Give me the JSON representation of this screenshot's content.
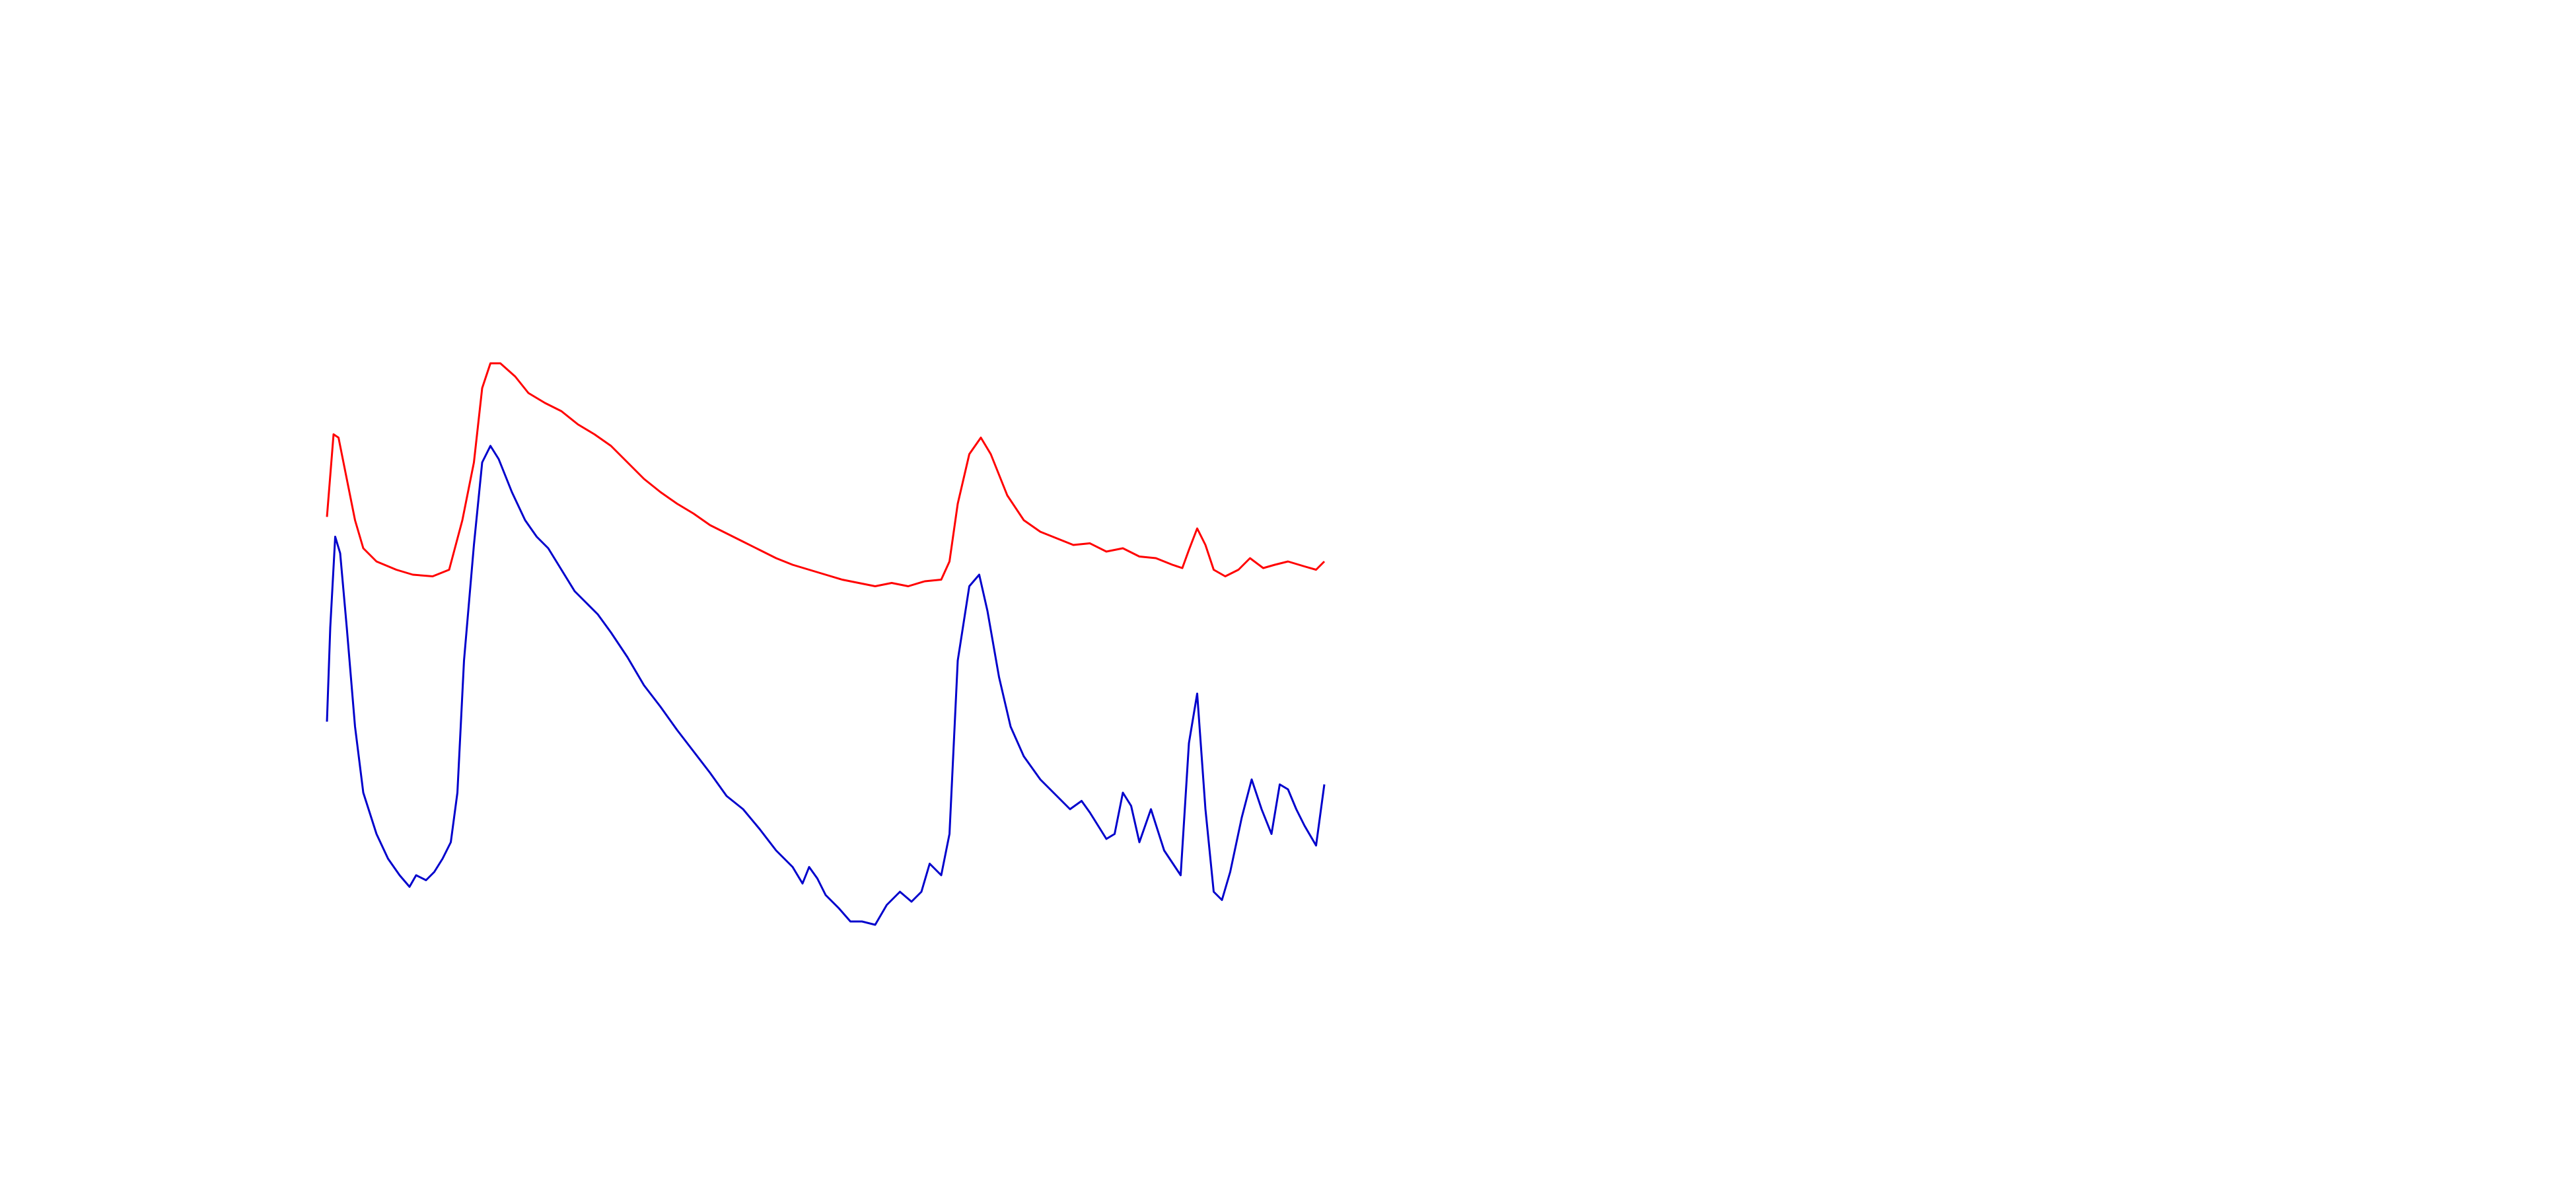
{
  "chart_data": {
    "type": "line",
    "xlim": [
      0,
      1560
    ],
    "ylim": [
      0,
      720
    ],
    "series": [
      {
        "color": "#ff0000",
        "x": [
          198,
          202,
          205,
          210,
          215,
          220,
          228,
          240,
          250,
          262,
          272,
          280,
          287,
          292,
          297,
          303,
          312,
          320,
          330,
          340,
          350,
          360,
          370,
          380,
          390,
          400,
          410,
          420,
          430,
          440,
          450,
          460,
          470,
          480,
          490,
          500,
          510,
          520,
          530,
          540,
          550,
          560,
          570,
          575,
          580,
          587,
          594,
          600,
          610,
          620,
          630,
          640,
          650,
          660,
          670,
          680,
          690,
          700,
          710,
          716,
          720,
          725,
          730,
          735,
          742,
          750,
          757,
          765,
          772,
          780,
          790,
          797,
          802
        ],
        "values": [
          407,
          457,
          455,
          430,
          405,
          388,
          380,
          375,
          372,
          371,
          375,
          405,
          440,
          485,
          500,
          500,
          492,
          482,
          476,
          471,
          463,
          457,
          450,
          440,
          430,
          422,
          415,
          409,
          402,
          397,
          392,
          387,
          382,
          378,
          375,
          372,
          369,
          367,
          365,
          367,
          365,
          368,
          369,
          380,
          415,
          445,
          455,
          445,
          420,
          405,
          398,
          394,
          390,
          391,
          386,
          388,
          383,
          382,
          378,
          376,
          387,
          400,
          390,
          375,
          371,
          375,
          382,
          376,
          378,
          380,
          377,
          375,
          380
        ]
      },
      {
        "color": "#0000cc",
        "x": [
          198,
          200,
          203,
          206,
          210,
          215,
          220,
          228,
          235,
          242,
          248,
          252,
          258,
          263,
          268,
          273,
          277,
          281,
          287,
          292,
          297,
          302,
          310,
          318,
          325,
          332,
          340,
          348,
          355,
          362,
          370,
          380,
          390,
          400,
          410,
          420,
          430,
          440,
          450,
          460,
          470,
          480,
          486,
          490,
          495,
          500,
          508,
          515,
          522,
          530,
          537,
          545,
          552,
          558,
          563,
          570,
          575,
          580,
          587,
          593,
          598,
          605,
          612,
          620,
          630,
          640,
          648,
          655,
          660,
          670,
          675,
          680,
          685,
          690,
          697,
          705,
          715,
          720,
          725,
          730,
          735,
          740,
          745,
          752,
          758,
          764,
          770,
          775,
          780,
          785,
          790,
          797,
          802
        ],
        "values": [
          283,
          340,
          395,
          385,
          340,
          280,
          240,
          215,
          200,
          190,
          183,
          190,
          187,
          192,
          200,
          210,
          240,
          320,
          390,
          440,
          450,
          442,
          422,
          405,
          395,
          388,
          375,
          362,
          355,
          348,
          337,
          322,
          305,
          292,
          278,
          265,
          252,
          238,
          230,
          218,
          205,
          195,
          185,
          195,
          188,
          178,
          170,
          162,
          162,
          160,
          172,
          180,
          174,
          180,
          197,
          190,
          215,
          320,
          365,
          372,
          350,
          310,
          280,
          262,
          248,
          238,
          230,
          235,
          228,
          212,
          215,
          240,
          232,
          210,
          230,
          205,
          190,
          270,
          300,
          230,
          180,
          175,
          192,
          225,
          248,
          230,
          215,
          245,
          242,
          230,
          220,
          208,
          245
        ]
      }
    ]
  }
}
